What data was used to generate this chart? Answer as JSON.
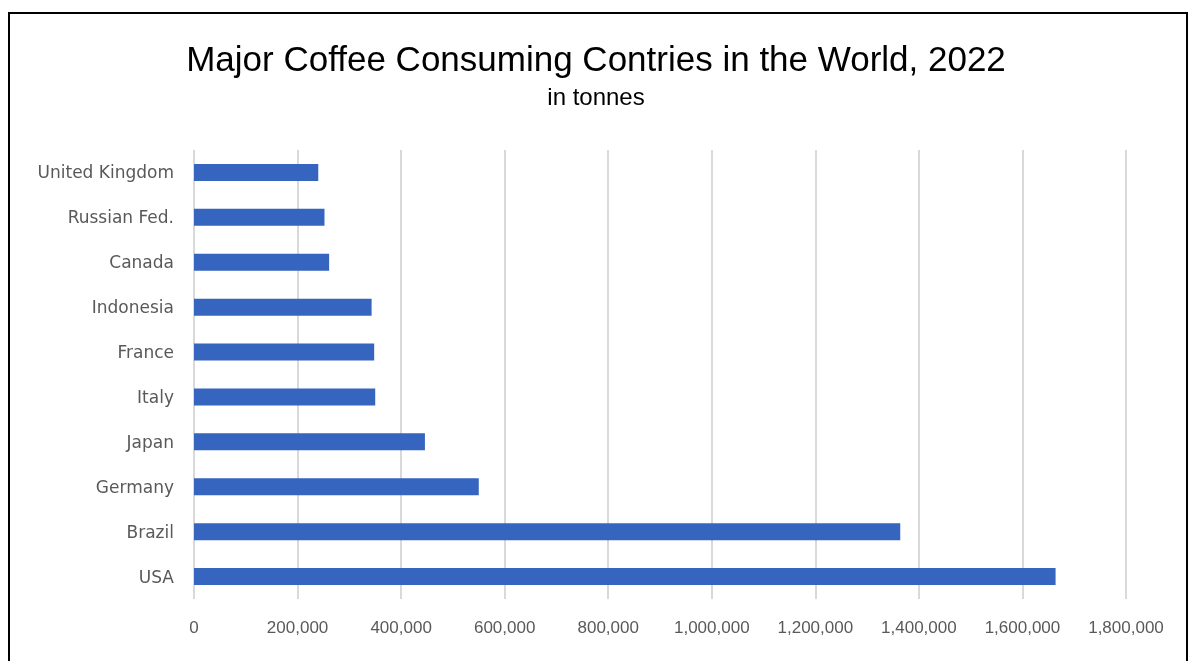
{
  "chart_data": {
    "type": "bar",
    "orientation": "horizontal",
    "title": "Major Coffee Consuming Contries in the World, 2022",
    "subtitle": "in tonnes",
    "categories": [
      "United Kingdom",
      "Russian Fed.",
      "Canada",
      "Indonesia",
      "France",
      "Italy",
      "Japan",
      "Germany",
      "Brazil",
      "USA"
    ],
    "values": [
      240000,
      252000,
      261000,
      343000,
      348000,
      350000,
      446000,
      550000,
      1364000,
      1664000
    ],
    "color": "#3565be",
    "xlim": [
      0,
      1800000
    ],
    "xticks": [
      0,
      {
        "value": 200000,
        "label": "200,000"
      },
      {
        "value": 400000,
        "label": "400,000"
      },
      {
        "value": 600000,
        "label": "600,000"
      },
      {
        "value": 800000,
        "label": "800,000"
      },
      {
        "value": 1000000,
        "label": "1,000,000"
      },
      {
        "value": 1200000,
        "label": "1,200,000"
      },
      {
        "value": 1400000,
        "label": "1,400,000"
      },
      {
        "value": 1600000,
        "label": "1,600,000"
      },
      {
        "value": 1800000,
        "label": "1,800,000"
      }
    ],
    "grid": "x"
  }
}
